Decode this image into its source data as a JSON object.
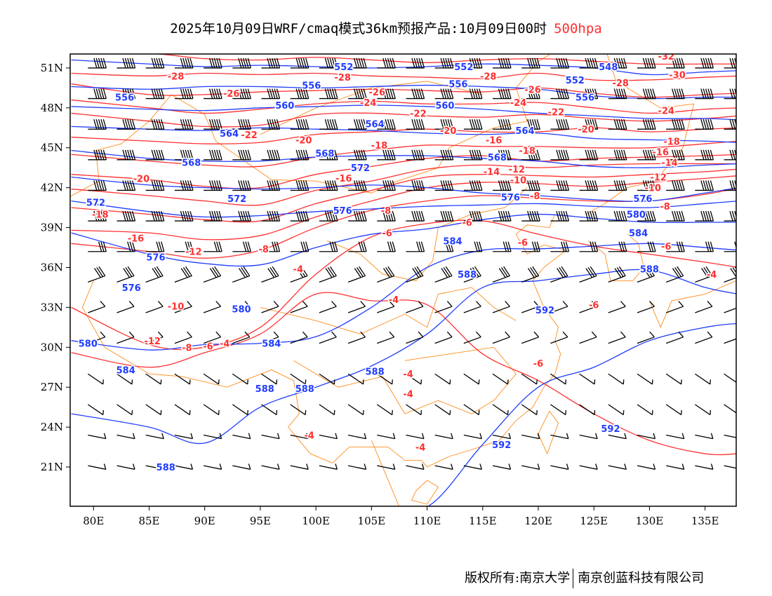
{
  "title": {
    "main": "2025年10月09日WRF/cmaq模式36km预报产品:10月09日00时",
    "level": "500hpa",
    "level_color": "#ff3030"
  },
  "footer": {
    "left": "版权所有:南京大学",
    "right": "南京创蓝科技有限公司"
  },
  "axes": {
    "lon_range": [
      77.9,
      137.8
    ],
    "lat_range": [
      18.05,
      52.05
    ],
    "lon_ticks": [
      {
        "v": 80,
        "label": "80E"
      },
      {
        "v": 85,
        "label": "85E"
      },
      {
        "v": 90,
        "label": "90E"
      },
      {
        "v": 95,
        "label": "95E"
      },
      {
        "v": 100,
        "label": "100E"
      },
      {
        "v": 105,
        "label": "105E"
      },
      {
        "v": 110,
        "label": "110E"
      },
      {
        "v": 115,
        "label": "115E"
      },
      {
        "v": 120,
        "label": "120E"
      },
      {
        "v": 125,
        "label": "125E"
      },
      {
        "v": 130,
        "label": "130E"
      },
      {
        "v": 135,
        "label": "135E"
      }
    ],
    "lat_ticks": [
      {
        "v": 51,
        "label": "51N"
      },
      {
        "v": 48,
        "label": "48N"
      },
      {
        "v": 45,
        "label": "45N"
      },
      {
        "v": 42,
        "label": "42N"
      },
      {
        "v": 39,
        "label": "39N"
      },
      {
        "v": 36,
        "label": "36N"
      },
      {
        "v": 33,
        "label": "33N"
      },
      {
        "v": 30,
        "label": "30N"
      },
      {
        "v": 27,
        "label": "27N"
      },
      {
        "v": 24,
        "label": "24N"
      },
      {
        "v": 21,
        "label": "21N"
      }
    ]
  },
  "colors": {
    "height": "#1f3cff",
    "temperature": "#ff3030",
    "border": "#ff8c1a",
    "wind": "#000000"
  },
  "height_contours": {
    "lons": [
      78,
      85,
      90,
      95,
      100,
      105,
      110,
      115,
      120,
      125,
      130,
      135,
      138
    ],
    "lines": [
      {
        "v": 552,
        "lats": [
          51.6,
          51.3,
          51.1,
          51.2,
          51.1,
          51.0,
          51.1,
          51.3,
          51.2,
          51.0,
          50.5,
          50.7,
          50.8
        ]
      },
      {
        "v": 556,
        "lats": [
          49.6,
          49.4,
          49.6,
          49.6,
          49.5,
          49.6,
          49.7,
          49.6,
          49.4,
          48.9,
          48.7,
          48.8,
          48.8
        ]
      },
      {
        "v": 560,
        "lats": [
          48.1,
          47.9,
          47.8,
          48.0,
          48.1,
          48.2,
          48.1,
          47.9,
          47.6,
          47.4,
          47.2,
          47.2,
          47.1
        ]
      },
      {
        "v": 564,
        "lats": [
          46.6,
          46.4,
          46.3,
          46.5,
          46.4,
          46.3,
          46.1,
          46.0,
          46.1,
          45.7,
          45.6,
          45.5,
          45.4
        ]
      },
      {
        "v": 568,
        "lats": [
          44.8,
          44.2,
          44.0,
          44.0,
          44.3,
          44.4,
          44.4,
          44.2,
          44.0,
          43.6,
          43.5,
          43.7,
          43.8
        ]
      },
      {
        "v": 572,
        "lats": [
          42.8,
          42.2,
          42.0,
          41.9,
          42.0,
          42.2,
          42.0,
          41.6,
          41.4,
          41.1,
          41.0,
          41.6,
          42.0
        ]
      },
      {
        "v": 576,
        "lats": [
          41.0,
          40.2,
          39.8,
          39.9,
          40.2,
          40.4,
          40.6,
          40.7,
          40.8,
          40.6,
          40.5,
          40.8,
          41.0
        ]
      },
      {
        "v": 580,
        "lats": [
          38.6,
          37.0,
          36.3,
          36.2,
          37.5,
          38.5,
          38.9,
          39.6,
          40.0,
          39.7,
          39.4,
          39.4,
          39.4
        ]
      },
      {
        "v": 584,
        "lats": [
          30.5,
          29.8,
          30.2,
          30.3,
          30.8,
          33.0,
          36.0,
          37.3,
          37.4,
          37.6,
          37.8,
          37.5,
          37.3
        ]
      },
      {
        "v": 588,
        "lats": [
          25.0,
          24.0,
          22.8,
          25.5,
          27.0,
          28.6,
          31.0,
          34.5,
          35.0,
          35.5,
          35.8,
          34.5,
          34.0
        ]
      },
      {
        "v": 592,
        "lats": [
          18.0,
          18.0,
          18.0,
          18.0,
          18.0,
          18.0,
          18.0,
          22.7,
          27.0,
          28.5,
          30.5,
          31.5,
          31.8
        ]
      }
    ],
    "labels": [
      {
        "text": "552",
        "lon": 102.5,
        "lat": 51.1
      },
      {
        "text": "552",
        "lon": 113.3,
        "lat": 51.1
      },
      {
        "text": "548",
        "lon": 126.3,
        "lat": 51.1
      },
      {
        "text": "552",
        "lon": 123.3,
        "lat": 50.1
      },
      {
        "text": "556",
        "lon": 82.8,
        "lat": 48.8
      },
      {
        "text": "556",
        "lon": 99.6,
        "lat": 49.7
      },
      {
        "text": "556",
        "lon": 112.8,
        "lat": 49.8
      },
      {
        "text": "556",
        "lon": 124.2,
        "lat": 48.8
      },
      {
        "text": "560",
        "lon": 97.2,
        "lat": 48.2
      },
      {
        "text": "560",
        "lon": 111.6,
        "lat": 48.2
      },
      {
        "text": "564",
        "lon": 92.2,
        "lat": 46.1
      },
      {
        "text": "564",
        "lon": 105.3,
        "lat": 46.8
      },
      {
        "text": "564",
        "lon": 118.8,
        "lat": 46.3
      },
      {
        "text": "568",
        "lon": 88.8,
        "lat": 43.9
      },
      {
        "text": "568",
        "lon": 100.8,
        "lat": 44.6
      },
      {
        "text": "568",
        "lon": 116.3,
        "lat": 44.3
      },
      {
        "text": "572",
        "lon": 104.0,
        "lat": 43.5
      },
      {
        "text": "572",
        "lon": 80.2,
        "lat": 40.9
      },
      {
        "text": "572",
        "lon": 92.9,
        "lat": 41.2
      },
      {
        "text": "576",
        "lon": 117.5,
        "lat": 41.3
      },
      {
        "text": "576",
        "lon": 129.4,
        "lat": 41.2
      },
      {
        "text": "576",
        "lon": 102.4,
        "lat": 40.3
      },
      {
        "text": "580",
        "lon": 128.8,
        "lat": 40.0
      },
      {
        "text": "576",
        "lon": 85.6,
        "lat": 36.8
      },
      {
        "text": "576",
        "lon": 83.4,
        "lat": 34.5
      },
      {
        "text": "580",
        "lon": 93.3,
        "lat": 32.9
      },
      {
        "text": "584",
        "lon": 112.3,
        "lat": 38.0
      },
      {
        "text": "584",
        "lon": 129.0,
        "lat": 38.6
      },
      {
        "text": "580",
        "lon": 79.5,
        "lat": 30.3
      },
      {
        "text": "584",
        "lon": 96.0,
        "lat": 30.3
      },
      {
        "text": "584",
        "lon": 82.9,
        "lat": 28.3
      },
      {
        "text": "588",
        "lon": 113.6,
        "lat": 35.5
      },
      {
        "text": "588",
        "lon": 130.0,
        "lat": 35.9
      },
      {
        "text": "588",
        "lon": 105.3,
        "lat": 28.2
      },
      {
        "text": "588",
        "lon": 95.4,
        "lat": 26.9
      },
      {
        "text": "588",
        "lon": 99.0,
        "lat": 26.9
      },
      {
        "text": "588",
        "lon": 86.5,
        "lat": 21.0
      },
      {
        "text": "592",
        "lon": 120.6,
        "lat": 32.8
      },
      {
        "text": "592",
        "lon": 116.7,
        "lat": 22.7
      },
      {
        "text": "592",
        "lon": 126.5,
        "lat": 23.9
      }
    ]
  },
  "temperature_contours": {
    "lons": [
      78,
      85,
      90,
      95,
      100,
      105,
      110,
      115,
      120,
      125,
      130,
      135,
      138
    ],
    "lines": [
      {
        "v": -30,
        "lats": [
          52.2,
          52.1,
          51.7,
          51.6,
          51.8,
          51.6,
          51.4,
          51.6,
          51.7,
          51.5,
          51.3,
          51.3,
          51.3
        ]
      },
      {
        "v": -28,
        "lats": [
          50.6,
          50.4,
          50.6,
          50.5,
          50.6,
          50.4,
          50.3,
          50.2,
          50.6,
          50.1,
          50.1,
          50.3,
          50.4
        ]
      },
      {
        "v": -26,
        "lats": [
          49.8,
          49.0,
          49.0,
          49.2,
          49.3,
          49.4,
          49.3,
          49.2,
          49.5,
          49.1,
          48.8,
          49.0,
          49.1
        ]
      },
      {
        "v": -24,
        "lats": [
          48.6,
          48.0,
          47.6,
          47.9,
          48.3,
          48.5,
          48.3,
          48.3,
          48.4,
          48.0,
          47.6,
          47.9,
          48.0
        ]
      },
      {
        "v": -22,
        "lats": [
          47.6,
          47.0,
          46.6,
          46.7,
          47.5,
          47.6,
          47.4,
          47.3,
          47.5,
          47.2,
          47.0,
          47.2,
          47.4
        ]
      },
      {
        "v": -20,
        "lats": [
          45.8,
          45.5,
          45.3,
          45.4,
          46.0,
          46.2,
          46.4,
          46.2,
          46.2,
          46.5,
          46.2,
          46.4,
          46.5
        ]
      },
      {
        "v": -18,
        "lats": [
          44.5,
          44.0,
          43.7,
          43.6,
          44.3,
          44.8,
          45.2,
          45.1,
          45.1,
          45.0,
          45.0,
          45.3,
          45.5
        ]
      },
      {
        "v": -16,
        "lats": [
          43.0,
          42.6,
          42.1,
          42.0,
          43.0,
          43.6,
          44.2,
          44.4,
          44.0,
          44.2,
          44.3,
          44.4,
          44.5
        ]
      },
      {
        "v": -14,
        "lats": [
          41.9,
          41.4,
          41.0,
          40.7,
          41.8,
          42.5,
          43.4,
          43.7,
          43.5,
          43.7,
          43.8,
          43.8,
          43.8
        ]
      },
      {
        "v": -12,
        "lats": [
          40.5,
          40.0,
          39.6,
          39.5,
          40.8,
          41.8,
          42.8,
          43.0,
          42.9,
          42.8,
          43.0,
          43.2,
          43.4
        ]
      },
      {
        "v": -10,
        "lats": [
          38.8,
          38.6,
          38.1,
          38.4,
          39.8,
          41.0,
          42.0,
          42.4,
          42.3,
          42.1,
          42.4,
          42.7,
          42.9
        ]
      },
      {
        "v": -8,
        "lats": [
          37.8,
          37.2,
          36.7,
          37.3,
          39.0,
          40.3,
          41.0,
          41.4,
          41.2,
          41.0,
          41.0,
          41.5,
          42.0
        ]
      },
      {
        "v": -6,
        "lats": [
          33.0,
          30.2,
          30.0,
          31.5,
          35.5,
          38.3,
          39.3,
          39.5,
          38.5,
          37.6,
          37.0,
          36.4,
          36.0
        ]
      },
      {
        "v": -4,
        "lats": [
          29.6,
          28.5,
          29.6,
          31.0,
          34.0,
          33.5,
          33.2,
          29.5,
          27.5,
          25.0,
          23.0,
          22.0,
          22.0
        ]
      }
    ],
    "labels": [
      {
        "text": "-30",
        "lon": 100.9,
        "lat": 51.8
      },
      {
        "text": "-30",
        "lon": 113.5,
        "lat": 51.7
      },
      {
        "text": "-32",
        "lon": 131.5,
        "lat": 51.9
      },
      {
        "text": "-28",
        "lon": 87.4,
        "lat": 50.4
      },
      {
        "text": "-28",
        "lon": 102.4,
        "lat": 50.3
      },
      {
        "text": "-28",
        "lon": 115.5,
        "lat": 50.4
      },
      {
        "text": "-30",
        "lon": 132.5,
        "lat": 50.5
      },
      {
        "text": "-28",
        "lon": 127.4,
        "lat": 49.9
      },
      {
        "text": "-26",
        "lon": 92.4,
        "lat": 49.1
      },
      {
        "text": "-26",
        "lon": 105.5,
        "lat": 49.2
      },
      {
        "text": "-26",
        "lon": 119.5,
        "lat": 49.4
      },
      {
        "text": "-24",
        "lon": 104.7,
        "lat": 48.4
      },
      {
        "text": "-24",
        "lon": 118.2,
        "lat": 48.4
      },
      {
        "text": "-24",
        "lon": 131.5,
        "lat": 47.8
      },
      {
        "text": "-22",
        "lon": 109.2,
        "lat": 47.6
      },
      {
        "text": "-22",
        "lon": 121.6,
        "lat": 47.7
      },
      {
        "text": "-22",
        "lon": 94.0,
        "lat": 46.0
      },
      {
        "text": "-20",
        "lon": 111.9,
        "lat": 46.3
      },
      {
        "text": "-20",
        "lon": 124.3,
        "lat": 46.4
      },
      {
        "text": "-20",
        "lon": 98.9,
        "lat": 45.6
      },
      {
        "text": "-20",
        "lon": 84.3,
        "lat": 42.7
      },
      {
        "text": "-18",
        "lon": 105.7,
        "lat": 45.2
      },
      {
        "text": "-18",
        "lon": 119.0,
        "lat": 45.6
      },
      {
        "text": "-18",
        "lon": 132.0,
        "lat": 45.5
      },
      {
        "text": "-16",
        "lon": 116.0,
        "lat": 44.8
      },
      {
        "text": "-16",
        "lon": 131.0,
        "lat": 44.7
      },
      {
        "text": "-16",
        "lon": 102.5,
        "lat": 43.5
      },
      {
        "text": "-14",
        "lon": 115.8,
        "lat": 44.0
      },
      {
        "text": "-14",
        "lon": 131.8,
        "lat": 43.9
      },
      {
        "text": "-12",
        "lon": 116.3,
        "lat": 43.4
      },
      {
        "text": "-12",
        "lon": 130.8,
        "lat": 42.8
      },
      {
        "text": "-10",
        "lon": 118.2,
        "lat": 42.6
      },
      {
        "text": "-10",
        "lon": 130.3,
        "lat": 42.0
      },
      {
        "text": "-8",
        "lon": 119.7,
        "lat": 41.4
      },
      {
        "text": "-8",
        "lon": 131.4,
        "lat": 40.6
      },
      {
        "text": "-8",
        "lon": 106.3,
        "lat": 40.3
      },
      {
        "text": "-18",
        "lon": 80.6,
        "lat": 40.0
      },
      {
        "text": "-16",
        "lon": 83.8,
        "lat": 38.2
      },
      {
        "text": "-12",
        "lon": 89.0,
        "lat": 37.2
      },
      {
        "text": "-8",
        "lon": 95.3,
        "lat": 37.4
      },
      {
        "text": "-6",
        "lon": 113.6,
        "lat": 39.4
      },
      {
        "text": "-6",
        "lon": 106.4,
        "lat": 38.6
      },
      {
        "text": "-6",
        "lon": 118.6,
        "lat": 37.9
      },
      {
        "text": "-6",
        "lon": 131.5,
        "lat": 37.6
      },
      {
        "text": "-4",
        "lon": 98.4,
        "lat": 35.9
      },
      {
        "text": "-4",
        "lon": 107.0,
        "lat": 33.6
      },
      {
        "text": "-4",
        "lon": 135.6,
        "lat": 35.5
      },
      {
        "text": "-10",
        "lon": 87.4,
        "lat": 33.1
      },
      {
        "text": "-12",
        "lon": 85.3,
        "lat": 30.5
      },
      {
        "text": "-8",
        "lon": 88.4,
        "lat": 30.0
      },
      {
        "text": "-6",
        "lon": 90.3,
        "lat": 30.1
      },
      {
        "text": "-4",
        "lon": 91.8,
        "lat": 30.3
      },
      {
        "text": "-6",
        "lon": 125.0,
        "lat": 33.2
      },
      {
        "text": "-6",
        "lon": 120.0,
        "lat": 28.8
      },
      {
        "text": "-4",
        "lon": 108.3,
        "lat": 28.0
      },
      {
        "text": "-4",
        "lon": 108.3,
        "lat": 27.3
      },
      {
        "text": "-4",
        "lon": 99.4,
        "lat": 23.4
      },
      {
        "text": "-4",
        "lon": 109.4,
        "lat": 22.5
      }
    ]
  }
}
